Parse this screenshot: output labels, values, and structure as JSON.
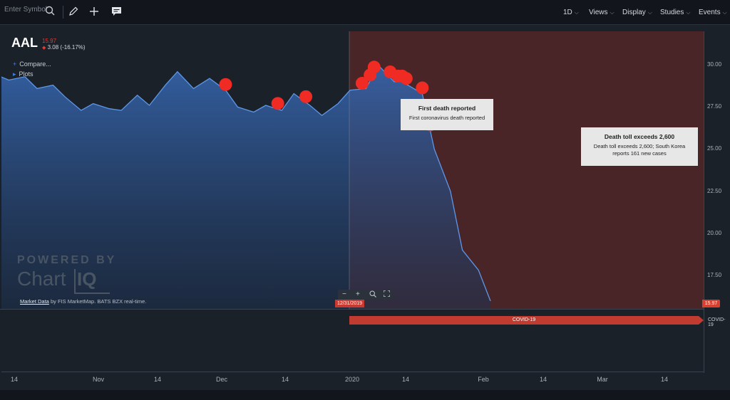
{
  "toolbar": {
    "search_placeholder": "Enter Symbol",
    "icons": [
      "search-icon",
      "pencil-icon",
      "plus-icon",
      "comment-icon"
    ],
    "menus": [
      "1D",
      "Views",
      "Display",
      "Studies",
      "Events"
    ]
  },
  "header": {
    "symbol": "AAL",
    "price": "15.97",
    "change": "3.08 (-16.17%)",
    "compare_label": "Compare...",
    "plots_label": "Plots"
  },
  "watermark": {
    "line1": "POWERED BY",
    "word": "Chart",
    "mark": "IQ"
  },
  "market_data": {
    "link": "Market Data",
    "text": " by FIS MarketMap. BATS BZX real-time."
  },
  "crosshair_date": "12/31/2019",
  "last_price_tag": "15.97",
  "event_track": {
    "bar_label": "COVID-19",
    "row_label": "COVID-19"
  },
  "tooltips": [
    {
      "title": "First death reported",
      "body": "First coronavirus death reported"
    },
    {
      "title": "Death toll exceeds 2,600",
      "body": "Death toll exceeds 2,600; South Korea reports 161 new cases"
    }
  ],
  "colors": {
    "area_fill": "#2f5a9e",
    "line": "#5d97e8",
    "event_marker": "#ef2b23",
    "covid_shade": "#4a2527"
  },
  "chart_data": {
    "type": "area",
    "title": "AAL",
    "x": [
      "Oct 4",
      "Oct 7",
      "Oct 10",
      "Oct 14",
      "Oct 17",
      "Oct 21",
      "Oct 24",
      "Oct 28",
      "Oct 31",
      "Nov 4",
      "Nov 7",
      "Nov 11",
      "Nov 14",
      "Nov 18",
      "Nov 21",
      "Nov 25",
      "Nov 28",
      "Dec 2",
      "Dec 5",
      "Dec 9",
      "Dec 12",
      "Dec 16",
      "Dec 19",
      "Dec 23",
      "Dec 27",
      "Dec 31",
      "Jan 3",
      "Jan 7",
      "Jan 10",
      "Jan 14",
      "Jan 17",
      "Jan 21",
      "Jan 24",
      "Jan 28",
      "Jan 31",
      "Feb 4",
      "Feb 7",
      "Feb 11",
      "Feb 13",
      "Feb 18",
      "Feb 21",
      "Feb 25",
      "Feb 28",
      "Mar 3",
      "Mar 6"
    ],
    "values": [
      27.2,
      27.6,
      28.3,
      28.4,
      29.2,
      31.0,
      30.3,
      30.8,
      31.0,
      29.4,
      29.1,
      29.3,
      28.6,
      28.8,
      28.1,
      27.3,
      27.7,
      27.4,
      27.3,
      28.2,
      27.6,
      28.8,
      29.6,
      28.6,
      29.2,
      28.5,
      27.5,
      27.2,
      27.6,
      27.3,
      28.3,
      27.6,
      27.0,
      27.7,
      28.5,
      28.6,
      30.0,
      29.0,
      29.0,
      28.3,
      25.0,
      22.5,
      19.0,
      17.8,
      15.97
    ],
    "x_ticks": [
      "14",
      "Nov",
      "14",
      "Dec",
      "14",
      "2020",
      "14",
      "Feb",
      "14",
      "Mar",
      "14"
    ],
    "y_ticks": [
      17.5,
      20.0,
      22.5,
      25.0,
      27.5,
      30.0
    ],
    "ylim": [
      15.5,
      32.0
    ],
    "grid": false,
    "event_markers": [
      "Dec 31",
      "Jan 13",
      "Jan 20",
      "Feb 3",
      "Feb 5",
      "Feb 6",
      "Feb 10",
      "Feb 12",
      "Feb 13",
      "Feb 14",
      "Feb 18",
      "Feb 19",
      "Feb 20"
    ],
    "shaded_region": {
      "label": "COVID-19",
      "from": "Dec 31",
      "to": "Mar 6"
    }
  }
}
